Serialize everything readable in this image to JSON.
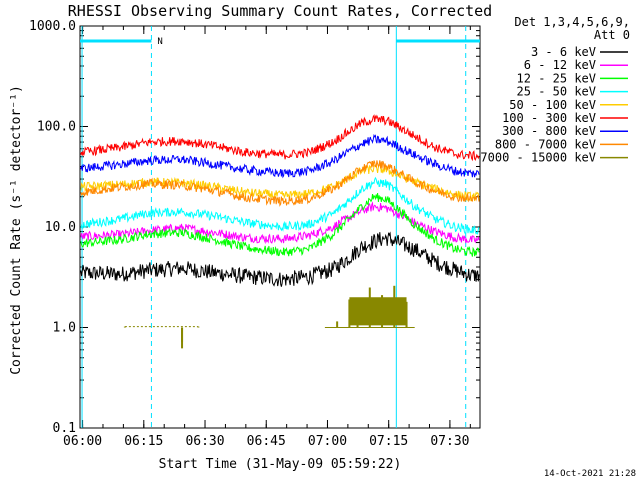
{
  "chart_data": {
    "type": "line",
    "title": "RHESSI Observing Summary Count Rates, Corrected",
    "xlabel": "Start Time (31-May-09 05:59:22)",
    "ylabel": "Corrected Count Rate (s⁻¹ detector⁻¹)",
    "y_scale": "log",
    "ylim": [
      0.1,
      1000
    ],
    "xlim_minutes": [
      0,
      98
    ],
    "x_tick_labels": [
      "06:00",
      "06:15",
      "06:30",
      "06:45",
      "07:00",
      "07:15",
      "07:30"
    ],
    "y_tick_labels": [
      "0.1",
      "1.0",
      "10.0",
      "100.0",
      "1000.0"
    ],
    "legend_header": [
      "Det 1,3,4,5,6,9,",
      "Att 0"
    ],
    "legend_position": "right",
    "footer_date": "14-Oct-2021 21:28",
    "night_label": "N",
    "series": [
      {
        "name": "3 - 6 keV",
        "color": "#000000",
        "x": [
          0,
          10,
          17,
          25,
          33,
          41,
          50,
          56,
          62,
          66,
          69,
          72,
          75,
          78,
          82,
          87,
          92,
          96
        ],
        "y": [
          3.5,
          3.4,
          3.7,
          3.9,
          3.5,
          3.2,
          3.0,
          3.2,
          3.8,
          5.0,
          6.3,
          7.2,
          7.8,
          7.0,
          6.0,
          4.5,
          3.7,
          3.3
        ]
      },
      {
        "name": "6 - 12 keV",
        "color": "#ff00ff",
        "x": [
          0,
          10,
          17,
          25,
          33,
          41,
          50,
          56,
          62,
          66,
          69,
          72,
          75,
          78,
          82,
          87,
          92,
          96
        ],
        "y": [
          8.0,
          8.4,
          9.2,
          9.8,
          8.8,
          7.8,
          7.6,
          8.2,
          10.0,
          12.5,
          14.5,
          16.0,
          15.5,
          13.5,
          11.0,
          9.0,
          7.8,
          7.4
        ]
      },
      {
        "name": "12 - 25 keV",
        "color": "#00ff00",
        "x": [
          0,
          10,
          17,
          25,
          33,
          41,
          50,
          56,
          62,
          66,
          69,
          72,
          75,
          78,
          82,
          87,
          92,
          96
        ],
        "y": [
          6.8,
          7.5,
          8.5,
          8.8,
          7.5,
          6.2,
          5.6,
          6.0,
          8.5,
          12.0,
          16.0,
          20.0,
          19.0,
          15.0,
          10.5,
          7.5,
          6.0,
          5.6
        ]
      },
      {
        "name": "25 - 50 keV",
        "color": "#00ffff",
        "x": [
          0,
          10,
          17,
          25,
          33,
          41,
          50,
          56,
          62,
          66,
          69,
          72,
          75,
          78,
          82,
          87,
          92,
          96
        ],
        "y": [
          10.5,
          12.0,
          13.8,
          14.2,
          12.8,
          11.0,
          10.0,
          10.6,
          13.5,
          18.5,
          24.0,
          28.0,
          27.0,
          22.0,
          16.0,
          12.0,
          10.0,
          9.3
        ]
      },
      {
        "name": "50 - 100 keV",
        "color": "#ffcc00",
        "x": [
          0,
          10,
          17,
          25,
          33,
          41,
          50,
          56,
          62,
          66,
          69,
          72,
          75,
          78,
          82,
          87,
          92,
          96
        ],
        "y": [
          25.0,
          26.5,
          28.0,
          27.5,
          25.0,
          22.0,
          20.5,
          21.5,
          25.0,
          31.0,
          36.0,
          38.0,
          37.0,
          33.0,
          28.0,
          24.0,
          21.0,
          20.0
        ]
      },
      {
        "name": "100 - 300 keV",
        "color": "#ff0000",
        "x": [
          0,
          10,
          17,
          25,
          33,
          41,
          50,
          56,
          62,
          66,
          69,
          72,
          75,
          78,
          82,
          87,
          92,
          96
        ],
        "y": [
          55.0,
          62.0,
          70.0,
          72.0,
          64.0,
          55.0,
          52.0,
          55.0,
          70.0,
          90.0,
          108.0,
          118.0,
          115.0,
          100.0,
          80.0,
          62.0,
          53.0,
          51.0
        ]
      },
      {
        "name": "300 - 800 keV",
        "color": "#0000ff",
        "x": [
          0,
          10,
          17,
          25,
          33,
          41,
          50,
          56,
          62,
          66,
          69,
          72,
          75,
          78,
          82,
          87,
          92,
          96
        ],
        "y": [
          38.0,
          42.0,
          46.0,
          47.0,
          42.0,
          37.0,
          34.0,
          36.0,
          45.0,
          57.0,
          67.0,
          74.0,
          72.0,
          63.0,
          52.0,
          42.0,
          36.0,
          34.0
        ]
      },
      {
        "name": "800 - 7000 keV",
        "color": "#ff8800",
        "x": [
          0,
          10,
          17,
          25,
          33,
          41,
          50,
          56,
          62,
          66,
          69,
          72,
          75,
          78,
          82,
          87,
          92,
          96
        ],
        "y": [
          22.0,
          25.0,
          27.0,
          26.0,
          23.0,
          19.5,
          18.0,
          19.0,
          24.0,
          31.0,
          38.0,
          43.0,
          41.0,
          35.0,
          28.0,
          23.0,
          20.0,
          19.0
        ]
      },
      {
        "name": "7000 - 15000 keV",
        "color": "#888800",
        "x": [
          11,
          29,
          25,
          25,
          60,
          63,
          66,
          68,
          71,
          74,
          77,
          80,
          80,
          82
        ],
        "y": [
          1.02,
          1.02,
          0.62,
          0.72,
          1.0,
          1.15,
          1.9,
          1.4,
          2.5,
          2.1,
          2.6,
          1.8,
          1.2,
          1.0
        ]
      }
    ],
    "night_intervals_minutes": [
      [
        0,
        17.5
      ],
      [
        77.5,
        98
      ]
    ],
    "saa_markers_minutes": [
      0.5,
      17.5,
      77.5,
      94.5
    ]
  }
}
